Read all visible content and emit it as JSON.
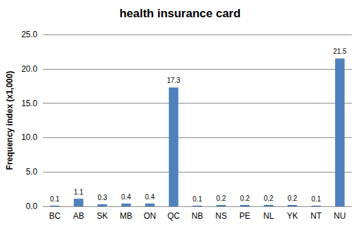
{
  "chart_data": {
    "type": "bar",
    "title": "health insurance card",
    "y_label": "Frequency index (x1,000)",
    "categories": [
      "BC",
      "AB",
      "SK",
      "MB",
      "ON",
      "QC",
      "NB",
      "NS",
      "PE",
      "NL",
      "YK",
      "NT",
      "NU"
    ],
    "values": [
      0.1,
      1.1,
      0.3,
      0.4,
      0.4,
      17.3,
      0.1,
      0.2,
      0.2,
      0.2,
      0.2,
      0.1,
      21.5
    ],
    "color": "#4f81bd",
    "ylim": [
      0,
      25
    ],
    "yticks": [
      {
        "value": 0,
        "label": "0.0"
      },
      {
        "value": 5,
        "label": "5.0"
      },
      {
        "value": 10,
        "label": "10.0"
      },
      {
        "value": 15,
        "label": "15.0"
      },
      {
        "value": 20,
        "label": "20.0"
      },
      {
        "value": 25,
        "label": "25.0"
      }
    ],
    "grid": true,
    "data_labels": true
  }
}
